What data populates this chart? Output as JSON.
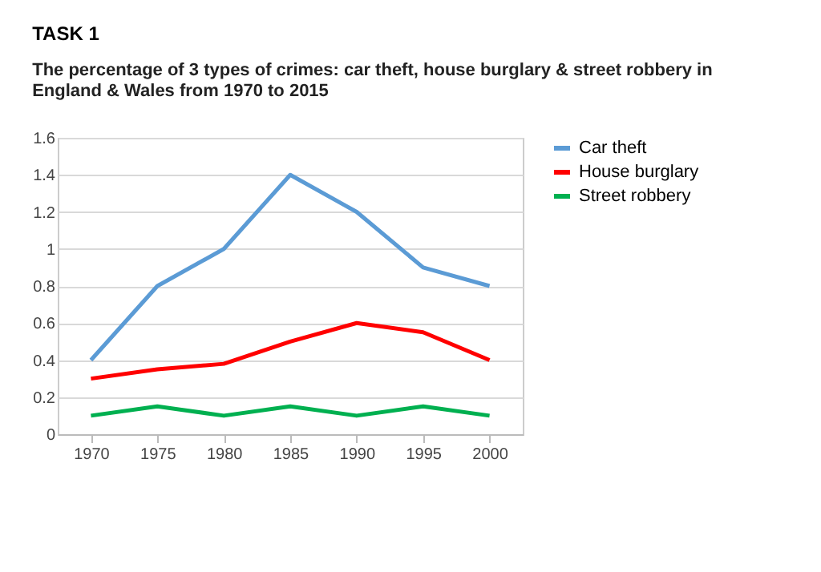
{
  "chart_data": {
    "type": "line",
    "title": "TASK 1",
    "subtitle": "The percentage of 3 types of crimes: car theft, house burglary & street robbery in England & Wales from 1970 to 2015",
    "categories": [
      "1970",
      "1975",
      "1980",
      "1985",
      "1990",
      "1995",
      "2000"
    ],
    "series": [
      {
        "name": "Car theft",
        "color": "#5b9bd5",
        "values": [
          0.4,
          0.8,
          1.0,
          1.4,
          1.2,
          0.9,
          0.8
        ]
      },
      {
        "name": "House burglary",
        "color": "#ff0000",
        "values": [
          0.3,
          0.35,
          0.38,
          0.5,
          0.6,
          0.55,
          0.4
        ]
      },
      {
        "name": "Street robbery",
        "color": "#00b050",
        "values": [
          0.1,
          0.15,
          0.1,
          0.15,
          0.1,
          0.15,
          0.1
        ]
      }
    ],
    "ylim": [
      0,
      1.6
    ],
    "yticks": [
      0,
      0.2,
      0.4,
      0.6,
      0.8,
      1,
      1.2,
      1.4,
      1.6
    ],
    "grid": "y",
    "legend": "right",
    "marker": "none",
    "line_style": "solid"
  }
}
